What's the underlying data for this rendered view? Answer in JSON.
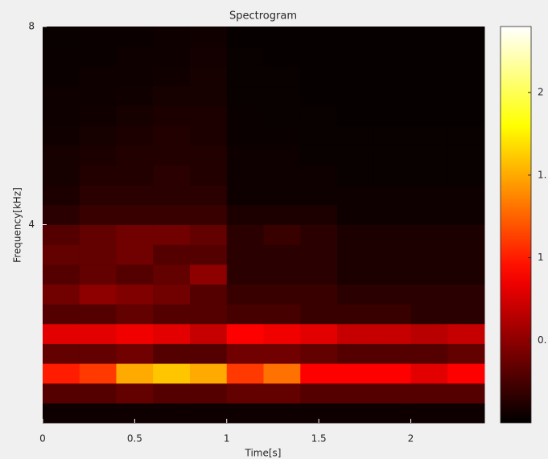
{
  "chart_data": {
    "type": "heatmap",
    "title": "Spectrogram",
    "x_label": "Time[s]",
    "y_label": "Frequency[kHz]",
    "colormap": "hot",
    "xbins": [
      0,
      0.2,
      0.4,
      0.6,
      0.8,
      1.0,
      1.2,
      1.4,
      1.6,
      1.8,
      2.0,
      2.2,
      2.4
    ],
    "ybins": [
      0,
      0.4,
      0.8,
      1.2,
      1.6,
      2.0,
      2.4,
      2.8,
      3.2,
      3.6,
      4.0,
      4.4,
      4.8,
      5.2,
      5.6,
      6.0,
      6.4,
      6.8,
      7.2,
      7.6,
      8.0
    ],
    "z": [
      [
        0.05,
        0.05,
        0.05,
        0.05,
        0.05,
        0.05,
        0.05,
        0.05,
        0.05,
        0.05,
        0.05,
        0.05
      ],
      [
        0.3,
        0.3,
        0.35,
        0.3,
        0.3,
        0.35,
        0.35,
        0.3,
        0.3,
        0.3,
        0.3,
        0.3
      ],
      [
        1.0,
        1.1,
        1.5,
        1.6,
        1.5,
        1.1,
        1.3,
        0.9,
        0.9,
        0.9,
        0.8,
        0.9
      ],
      [
        0.35,
        0.35,
        0.4,
        0.3,
        0.3,
        0.4,
        0.4,
        0.35,
        0.3,
        0.3,
        0.3,
        0.35
      ],
      [
        0.8,
        0.8,
        0.85,
        0.8,
        0.7,
        0.9,
        0.85,
        0.8,
        0.7,
        0.7,
        0.65,
        0.7
      ],
      [
        0.3,
        0.3,
        0.35,
        0.3,
        0.3,
        0.25,
        0.25,
        0.2,
        0.2,
        0.2,
        0.15,
        0.15
      ],
      [
        0.4,
        0.5,
        0.45,
        0.4,
        0.3,
        0.2,
        0.2,
        0.2,
        0.15,
        0.15,
        0.15,
        0.15
      ],
      [
        0.3,
        0.35,
        0.3,
        0.35,
        0.5,
        0.15,
        0.15,
        0.15,
        0.1,
        0.1,
        0.1,
        0.1
      ],
      [
        0.35,
        0.35,
        0.4,
        0.3,
        0.3,
        0.15,
        0.15,
        0.15,
        0.1,
        0.1,
        0.1,
        0.1
      ],
      [
        0.3,
        0.35,
        0.4,
        0.4,
        0.35,
        0.15,
        0.2,
        0.15,
        0.1,
        0.1,
        0.1,
        0.1
      ],
      [
        0.15,
        0.2,
        0.2,
        0.2,
        0.2,
        0.1,
        0.1,
        0.1,
        0.05,
        0.05,
        0.05,
        0.05
      ],
      [
        0.1,
        0.15,
        0.15,
        0.15,
        0.15,
        0.05,
        0.05,
        0.05,
        0.05,
        0.05,
        0.05,
        0.05
      ],
      [
        0.08,
        0.12,
        0.12,
        0.15,
        0.12,
        0.05,
        0.05,
        0.05,
        0.03,
        0.03,
        0.03,
        0.03
      ],
      [
        0.08,
        0.1,
        0.12,
        0.12,
        0.12,
        0.05,
        0.05,
        0.03,
        0.03,
        0.03,
        0.03,
        0.03
      ],
      [
        0.06,
        0.08,
        0.1,
        0.12,
        0.1,
        0.04,
        0.04,
        0.03,
        0.03,
        0.03,
        0.03,
        0.03
      ],
      [
        0.05,
        0.06,
        0.08,
        0.1,
        0.1,
        0.04,
        0.03,
        0.03,
        0.02,
        0.02,
        0.02,
        0.02
      ],
      [
        0.05,
        0.05,
        0.06,
        0.08,
        0.08,
        0.03,
        0.03,
        0.02,
        0.02,
        0.02,
        0.02,
        0.02
      ],
      [
        0.04,
        0.05,
        0.05,
        0.06,
        0.08,
        0.03,
        0.03,
        0.02,
        0.02,
        0.02,
        0.02,
        0.02
      ],
      [
        0.04,
        0.04,
        0.05,
        0.05,
        0.07,
        0.03,
        0.02,
        0.02,
        0.02,
        0.02,
        0.02,
        0.02
      ],
      [
        0.03,
        0.04,
        0.04,
        0.05,
        0.06,
        0.02,
        0.02,
        0.02,
        0.02,
        0.02,
        0.02,
        0.02
      ]
    ],
    "xlim": [
      0,
      2.4
    ],
    "xticks": [
      0,
      0.5,
      1,
      1.5,
      2
    ],
    "ylim": [
      0,
      8
    ],
    "yticks": [
      4,
      8
    ],
    "clim": [
      0,
      2.4
    ],
    "cticks": [
      {
        "value": 0.5,
        "label": "0."
      },
      1,
      {
        "value": 1.5,
        "label": "1."
      },
      2
    ]
  }
}
